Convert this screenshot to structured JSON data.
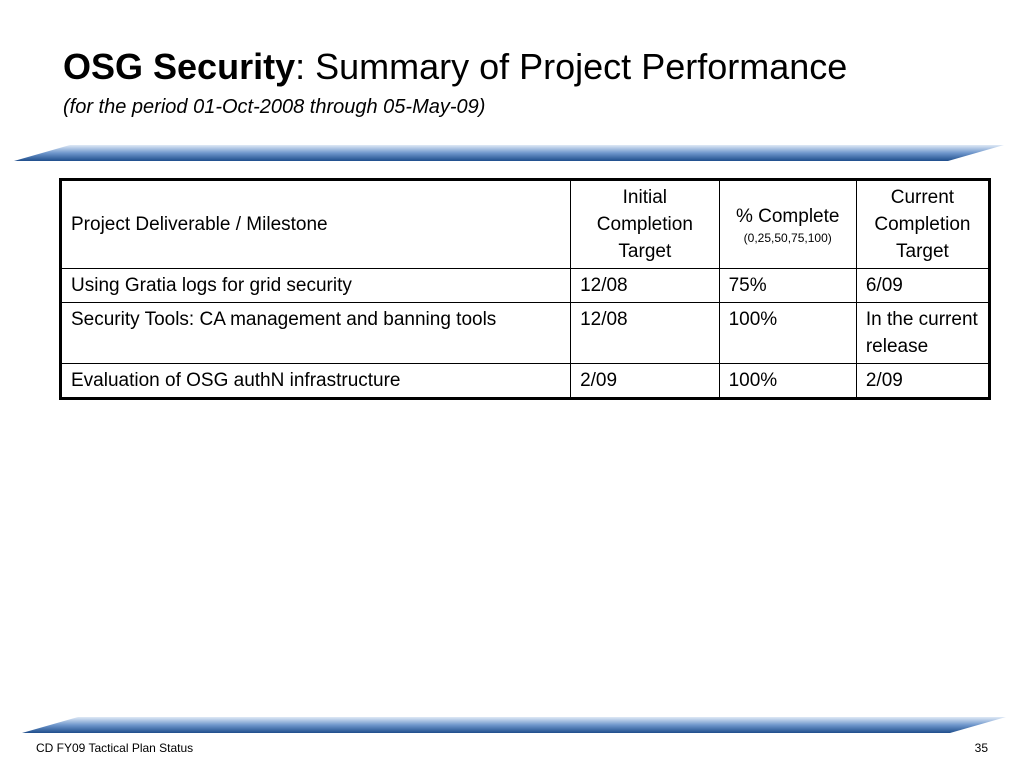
{
  "slide": {
    "title_bold": "OSG Security",
    "title_rest": ": Summary of Project Performance",
    "subtitle": "(for the period 01-Oct-2008 through 05-May-09)"
  },
  "table": {
    "headers": {
      "deliverable": "Project Deliverable / Milestone",
      "initial_target": "Initial Completion Target",
      "percent_complete": "% Complete",
      "percent_scale": "(0,25,50,75,100)",
      "current_target": "Current Completion Target"
    },
    "rows": [
      {
        "deliverable": "Using Gratia logs for grid security",
        "initial": "12/08",
        "percent": "75%",
        "current": "6/09"
      },
      {
        "deliverable": "Security Tools: CA management and banning tools",
        "initial": "12/08",
        "percent": "100%",
        "current": "In the current release"
      },
      {
        "deliverable": "Evaluation of OSG authN infrastructure",
        "initial": "2/09",
        "percent": "100%",
        "current": "2/09"
      }
    ]
  },
  "footer": {
    "left": "CD FY09 Tactical Plan Status",
    "page": "35"
  },
  "colors": {
    "band_dark": "#1f4e8c",
    "band_light": "#dfe9f6"
  }
}
